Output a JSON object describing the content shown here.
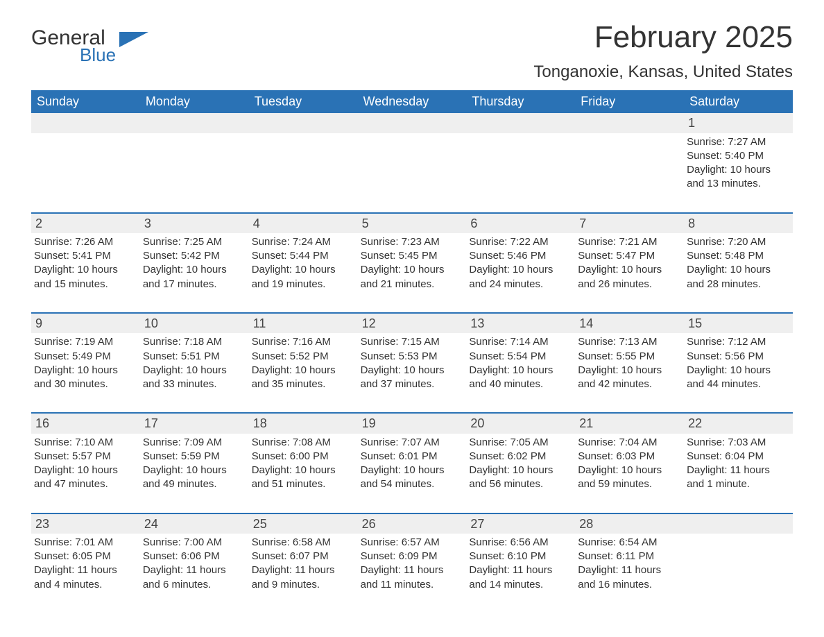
{
  "brand": {
    "general": "General",
    "blue": "Blue"
  },
  "title": "February 2025",
  "location": "Tonganoxie, Kansas, United States",
  "colors": {
    "header_bg": "#2a72b5",
    "header_fg": "#ffffff",
    "daynum_bg": "#efefef",
    "rule": "#2a72b5",
    "text": "#333333"
  },
  "weekdays": [
    "Sunday",
    "Monday",
    "Tuesday",
    "Wednesday",
    "Thursday",
    "Friday",
    "Saturday"
  ],
  "weeks": [
    [
      null,
      null,
      null,
      null,
      null,
      null,
      {
        "n": "1",
        "sunrise": "Sunrise: 7:27 AM",
        "sunset": "Sunset: 5:40 PM",
        "day1": "Daylight: 10 hours",
        "day2": "and 13 minutes."
      }
    ],
    [
      {
        "n": "2",
        "sunrise": "Sunrise: 7:26 AM",
        "sunset": "Sunset: 5:41 PM",
        "day1": "Daylight: 10 hours",
        "day2": "and 15 minutes."
      },
      {
        "n": "3",
        "sunrise": "Sunrise: 7:25 AM",
        "sunset": "Sunset: 5:42 PM",
        "day1": "Daylight: 10 hours",
        "day2": "and 17 minutes."
      },
      {
        "n": "4",
        "sunrise": "Sunrise: 7:24 AM",
        "sunset": "Sunset: 5:44 PM",
        "day1": "Daylight: 10 hours",
        "day2": "and 19 minutes."
      },
      {
        "n": "5",
        "sunrise": "Sunrise: 7:23 AM",
        "sunset": "Sunset: 5:45 PM",
        "day1": "Daylight: 10 hours",
        "day2": "and 21 minutes."
      },
      {
        "n": "6",
        "sunrise": "Sunrise: 7:22 AM",
        "sunset": "Sunset: 5:46 PM",
        "day1": "Daylight: 10 hours",
        "day2": "and 24 minutes."
      },
      {
        "n": "7",
        "sunrise": "Sunrise: 7:21 AM",
        "sunset": "Sunset: 5:47 PM",
        "day1": "Daylight: 10 hours",
        "day2": "and 26 minutes."
      },
      {
        "n": "8",
        "sunrise": "Sunrise: 7:20 AM",
        "sunset": "Sunset: 5:48 PM",
        "day1": "Daylight: 10 hours",
        "day2": "and 28 minutes."
      }
    ],
    [
      {
        "n": "9",
        "sunrise": "Sunrise: 7:19 AM",
        "sunset": "Sunset: 5:49 PM",
        "day1": "Daylight: 10 hours",
        "day2": "and 30 minutes."
      },
      {
        "n": "10",
        "sunrise": "Sunrise: 7:18 AM",
        "sunset": "Sunset: 5:51 PM",
        "day1": "Daylight: 10 hours",
        "day2": "and 33 minutes."
      },
      {
        "n": "11",
        "sunrise": "Sunrise: 7:16 AM",
        "sunset": "Sunset: 5:52 PM",
        "day1": "Daylight: 10 hours",
        "day2": "and 35 minutes."
      },
      {
        "n": "12",
        "sunrise": "Sunrise: 7:15 AM",
        "sunset": "Sunset: 5:53 PM",
        "day1": "Daylight: 10 hours",
        "day2": "and 37 minutes."
      },
      {
        "n": "13",
        "sunrise": "Sunrise: 7:14 AM",
        "sunset": "Sunset: 5:54 PM",
        "day1": "Daylight: 10 hours",
        "day2": "and 40 minutes."
      },
      {
        "n": "14",
        "sunrise": "Sunrise: 7:13 AM",
        "sunset": "Sunset: 5:55 PM",
        "day1": "Daylight: 10 hours",
        "day2": "and 42 minutes."
      },
      {
        "n": "15",
        "sunrise": "Sunrise: 7:12 AM",
        "sunset": "Sunset: 5:56 PM",
        "day1": "Daylight: 10 hours",
        "day2": "and 44 minutes."
      }
    ],
    [
      {
        "n": "16",
        "sunrise": "Sunrise: 7:10 AM",
        "sunset": "Sunset: 5:57 PM",
        "day1": "Daylight: 10 hours",
        "day2": "and 47 minutes."
      },
      {
        "n": "17",
        "sunrise": "Sunrise: 7:09 AM",
        "sunset": "Sunset: 5:59 PM",
        "day1": "Daylight: 10 hours",
        "day2": "and 49 minutes."
      },
      {
        "n": "18",
        "sunrise": "Sunrise: 7:08 AM",
        "sunset": "Sunset: 6:00 PM",
        "day1": "Daylight: 10 hours",
        "day2": "and 51 minutes."
      },
      {
        "n": "19",
        "sunrise": "Sunrise: 7:07 AM",
        "sunset": "Sunset: 6:01 PM",
        "day1": "Daylight: 10 hours",
        "day2": "and 54 minutes."
      },
      {
        "n": "20",
        "sunrise": "Sunrise: 7:05 AM",
        "sunset": "Sunset: 6:02 PM",
        "day1": "Daylight: 10 hours",
        "day2": "and 56 minutes."
      },
      {
        "n": "21",
        "sunrise": "Sunrise: 7:04 AM",
        "sunset": "Sunset: 6:03 PM",
        "day1": "Daylight: 10 hours",
        "day2": "and 59 minutes."
      },
      {
        "n": "22",
        "sunrise": "Sunrise: 7:03 AM",
        "sunset": "Sunset: 6:04 PM",
        "day1": "Daylight: 11 hours",
        "day2": "and 1 minute."
      }
    ],
    [
      {
        "n": "23",
        "sunrise": "Sunrise: 7:01 AM",
        "sunset": "Sunset: 6:05 PM",
        "day1": "Daylight: 11 hours",
        "day2": "and 4 minutes."
      },
      {
        "n": "24",
        "sunrise": "Sunrise: 7:00 AM",
        "sunset": "Sunset: 6:06 PM",
        "day1": "Daylight: 11 hours",
        "day2": "and 6 minutes."
      },
      {
        "n": "25",
        "sunrise": "Sunrise: 6:58 AM",
        "sunset": "Sunset: 6:07 PM",
        "day1": "Daylight: 11 hours",
        "day2": "and 9 minutes."
      },
      {
        "n": "26",
        "sunrise": "Sunrise: 6:57 AM",
        "sunset": "Sunset: 6:09 PM",
        "day1": "Daylight: 11 hours",
        "day2": "and 11 minutes."
      },
      {
        "n": "27",
        "sunrise": "Sunrise: 6:56 AM",
        "sunset": "Sunset: 6:10 PM",
        "day1": "Daylight: 11 hours",
        "day2": "and 14 minutes."
      },
      {
        "n": "28",
        "sunrise": "Sunrise: 6:54 AM",
        "sunset": "Sunset: 6:11 PM",
        "day1": "Daylight: 11 hours",
        "day2": "and 16 minutes."
      },
      null
    ]
  ]
}
